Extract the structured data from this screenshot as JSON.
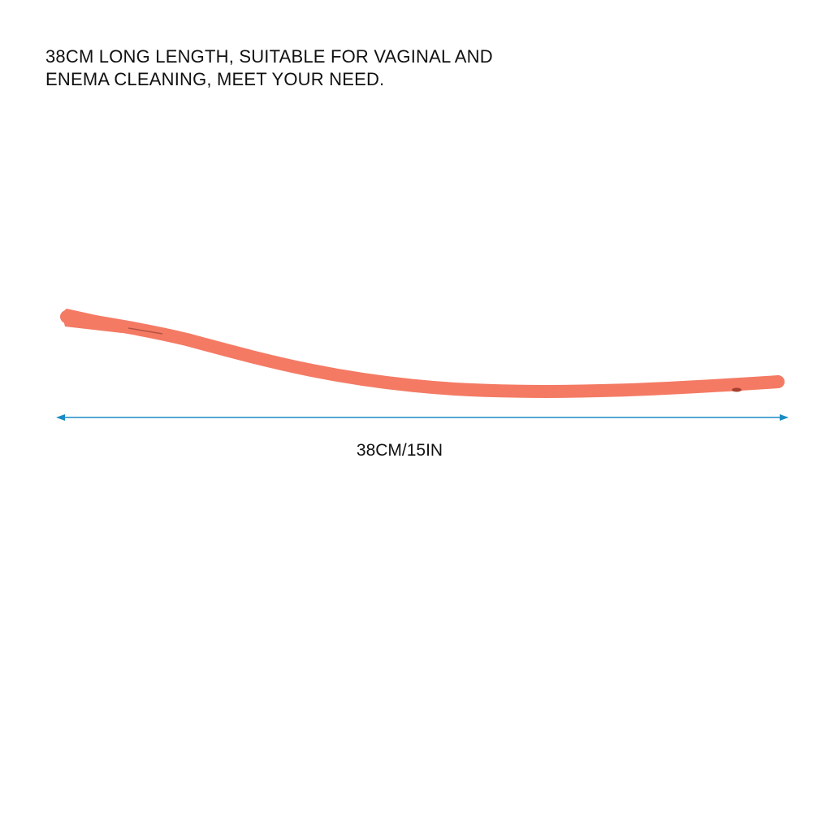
{
  "headline": {
    "line1": "38CM LONG LENGTH, SUITABLE FOR VAGINAL AND",
    "line2": "ENEMA CLEANING, MEET YOUR NEED."
  },
  "dimension": {
    "label": "38CM/15IN",
    "arrow_color": "#1a8cc4"
  },
  "product": {
    "name": "tube",
    "color": "#f7806a"
  }
}
